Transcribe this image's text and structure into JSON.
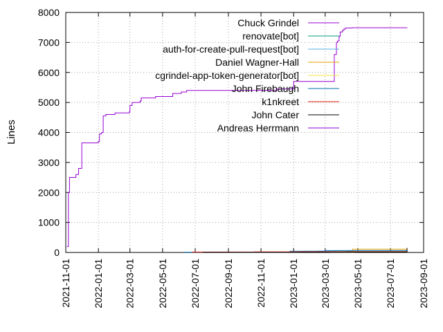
{
  "chart_data": {
    "type": "line",
    "title": "",
    "xlabel": "",
    "ylabel": "Lines",
    "x_ticks": [
      "2021-11-01",
      "2022-01-01",
      "2022-03-01",
      "2022-05-01",
      "2022-07-01",
      "2022-09-01",
      "2022-11-01",
      "2023-01-01",
      "2023-03-01",
      "2023-05-01",
      "2023-07-01",
      "2023-09-01"
    ],
    "xlim": [
      "2021-11-01",
      "2023-09-01"
    ],
    "y_ticks": [
      0,
      1000,
      2000,
      3000,
      4000,
      5000,
      6000,
      7000,
      8000
    ],
    "ylim": [
      0,
      8000
    ],
    "grid": "dotted",
    "legend_position": "top-right",
    "series": [
      {
        "name": "Chuck Grindel",
        "color": "#9400d3",
        "x": [],
        "y": []
      },
      {
        "name": "renovate[bot]",
        "color": "#009e73",
        "x": [
          "2022-09-05",
          "2022-12-20",
          "2023-01-15",
          "2023-03-01",
          "2023-04-10",
          "2023-08-01"
        ],
        "y": [
          5,
          10,
          20,
          30,
          35,
          40
        ]
      },
      {
        "name": "auth-for-create-pull-request[bot]",
        "color": "#56b4e9",
        "x": [
          "2023-01-20",
          "2023-02-15",
          "2023-03-20",
          "2023-08-01"
        ],
        "y": [
          40,
          50,
          60,
          65
        ]
      },
      {
        "name": "Daniel Wagner-Hall",
        "color": "#e69f00",
        "x": [
          "2023-04-20",
          "2023-04-21",
          "2023-08-01"
        ],
        "y": [
          0,
          110,
          115
        ]
      },
      {
        "name": "cgrindel-app-token-generator[bot]",
        "color": "#f0e442",
        "x": [
          "2023-03-10",
          "2023-04-25",
          "2023-08-01"
        ],
        "y": [
          10,
          30,
          40
        ]
      },
      {
        "name": "John Firebaugh",
        "color": "#0072b2",
        "x": [
          "2022-06-10",
          "2022-12-25",
          "2023-03-01",
          "2023-08-01"
        ],
        "y": [
          10,
          40,
          60,
          70
        ]
      },
      {
        "name": "k1nkreet",
        "color": "#e51e10",
        "x": [
          "2022-06-25",
          "2022-10-20",
          "2023-01-10",
          "2023-08-01"
        ],
        "y": [
          15,
          20,
          25,
          30
        ]
      },
      {
        "name": "John Cater",
        "color": "#000000",
        "x": [
          "2022-07-15",
          "2023-01-10",
          "2023-08-01",
          "2023-08-01"
        ],
        "y": [
          5,
          10,
          15,
          150
        ]
      },
      {
        "name": "Andreas Herrmann",
        "color": "#9400d3",
        "x": [
          "2021-11-03",
          "2021-11-06",
          "2021-11-08",
          "2021-11-20",
          "2021-11-25",
          "2021-12-01",
          "2022-01-01",
          "2022-01-03",
          "2022-01-07",
          "2022-01-10",
          "2022-01-15",
          "2022-02-01",
          "2022-02-28",
          "2022-03-01",
          "2022-03-05",
          "2022-03-20",
          "2022-03-22",
          "2022-04-15",
          "2022-04-18",
          "2022-05-20",
          "2022-06-05",
          "2022-06-15",
          "2022-07-10",
          "2022-09-01",
          "2022-12-01",
          "2023-01-01",
          "2023-03-15",
          "2023-03-18",
          "2023-03-22",
          "2023-03-24",
          "2023-03-27",
          "2023-03-29",
          "2023-04-02",
          "2023-04-05",
          "2023-04-08",
          "2023-04-20",
          "2023-08-01"
        ],
        "y": [
          200,
          2000,
          2500,
          2600,
          2800,
          3650,
          3700,
          3950,
          4000,
          4550,
          4600,
          4650,
          4700,
          4900,
          5000,
          5050,
          5150,
          5150,
          5200,
          5300,
          5350,
          5400,
          5400,
          5400,
          5450,
          5700,
          5700,
          6600,
          7000,
          7050,
          7200,
          7350,
          7400,
          7450,
          7480,
          7490,
          7500
        ]
      }
    ]
  }
}
